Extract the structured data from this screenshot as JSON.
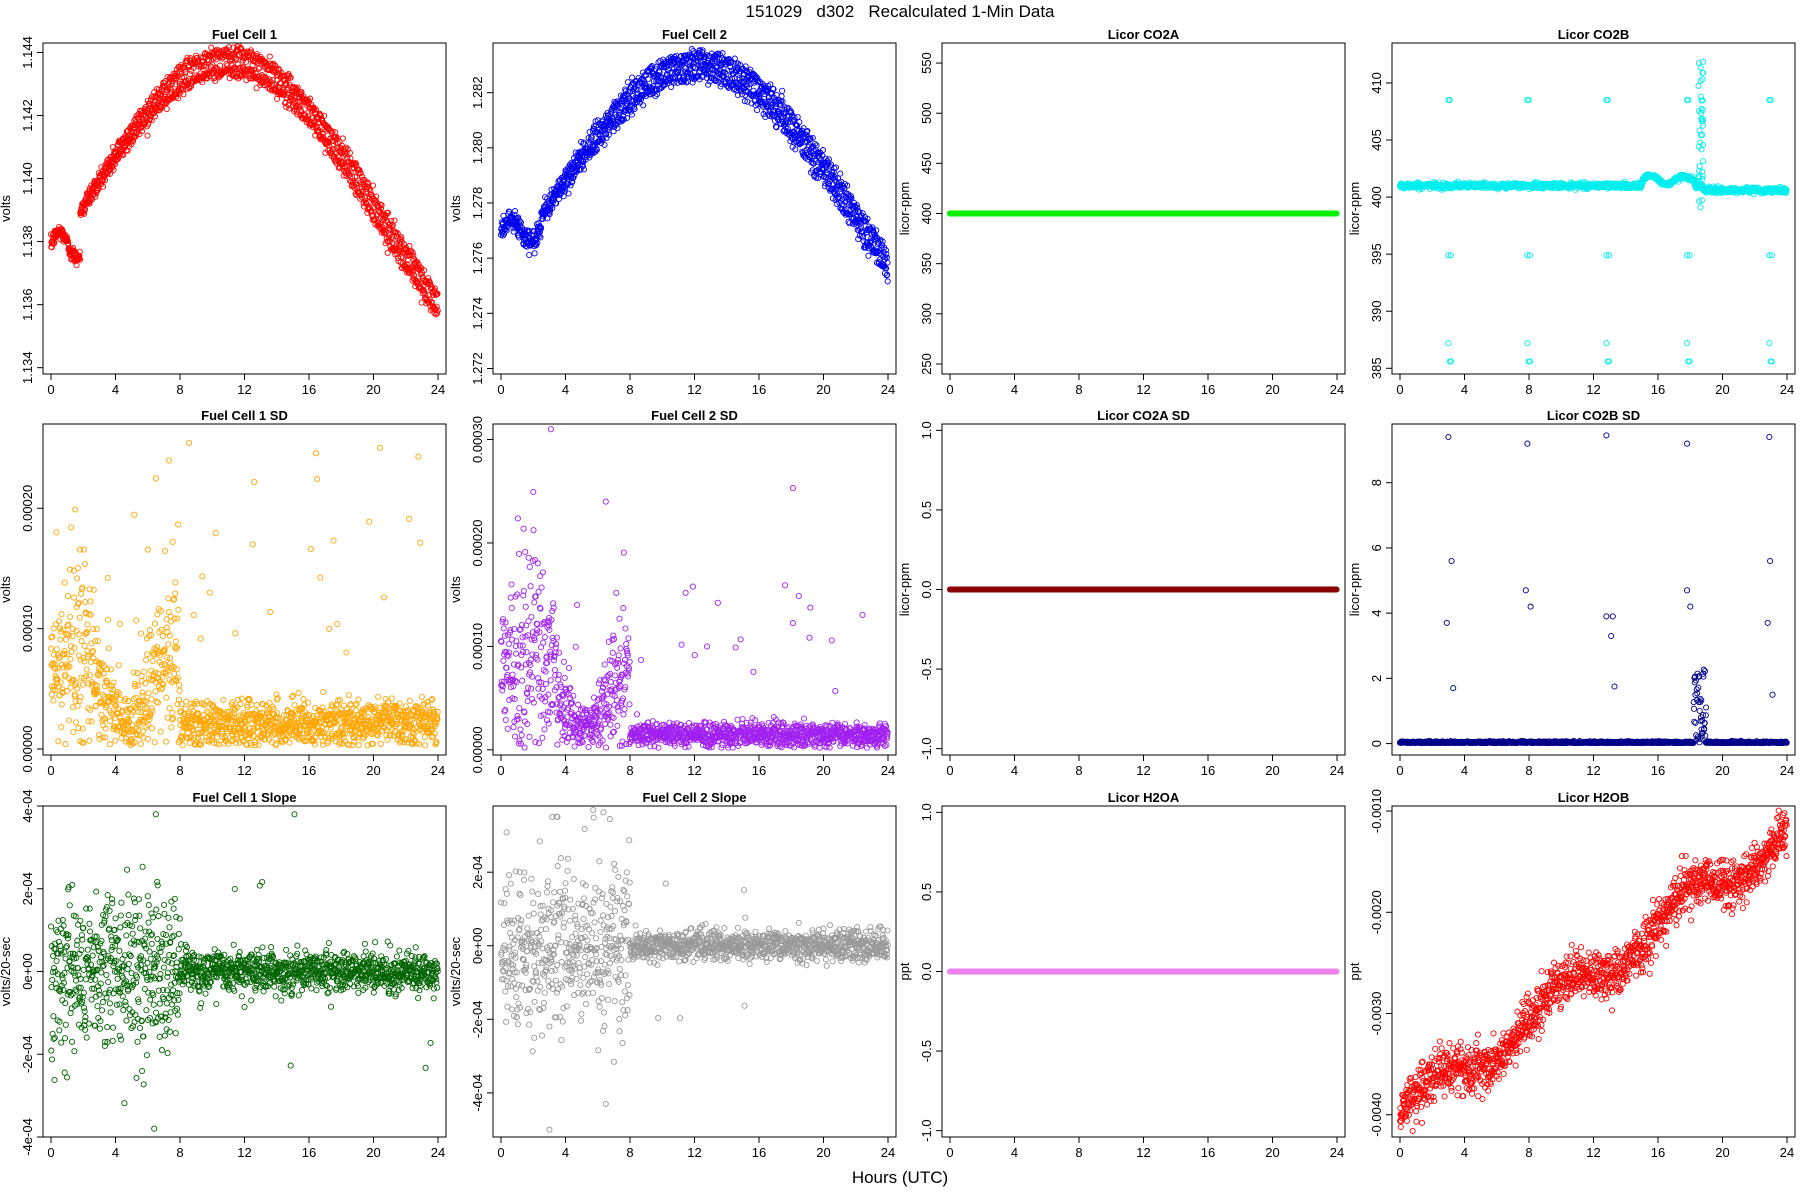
{
  "figure": {
    "title": "151029   d302   Recalculated 1-Min Data",
    "xlabel": "Hours (UTC)"
  },
  "chart_data": [
    {
      "type": "scatter",
      "title": "Fuel Cell 1",
      "xlabel": "",
      "ylabel": "volts",
      "xlim": [
        0,
        24
      ],
      "ylim": [
        1.1338,
        1.1443
      ],
      "xticks": [
        0,
        4,
        8,
        12,
        16,
        20,
        24
      ],
      "yticks": [
        1.134,
        1.136,
        1.138,
        1.14,
        1.142,
        1.144
      ],
      "ytick_labels": [
        "1.134",
        "1.136",
        "1.138",
        "1.140",
        "1.142",
        "1.144"
      ],
      "color": "#ff0000",
      "pattern": "cell1",
      "x_range": [
        0,
        24
      ]
    },
    {
      "type": "scatter",
      "title": "Fuel Cell 2",
      "xlabel": "",
      "ylabel": "volts",
      "xlim": [
        0,
        24
      ],
      "ylim": [
        1.2718,
        1.2838
      ],
      "xticks": [
        0,
        4,
        8,
        12,
        16,
        20,
        24
      ],
      "yticks": [
        1.272,
        1.274,
        1.276,
        1.278,
        1.28,
        1.282
      ],
      "ytick_labels": [
        "1.272",
        "1.274",
        "1.276",
        "1.278",
        "1.280",
        "1.282"
      ],
      "color": "#0000ee",
      "pattern": "cell2",
      "x_range": [
        0,
        24
      ]
    },
    {
      "type": "scatter",
      "title": "Licor CO2A",
      "xlabel": "",
      "ylabel": "licor-ppm",
      "xlim": [
        0,
        24
      ],
      "ylim": [
        240,
        570
      ],
      "xticks": [
        0,
        4,
        8,
        12,
        16,
        20,
        24
      ],
      "yticks": [
        250,
        300,
        350,
        400,
        450,
        500,
        550
      ],
      "ytick_labels": [
        "250",
        "300",
        "350",
        "400",
        "450",
        "500",
        "550"
      ],
      "color": "#00ee00",
      "pattern": "flat",
      "flat_value": 400,
      "x_range": [
        0,
        24
      ]
    },
    {
      "type": "scatter",
      "title": "Licor CO2B",
      "xlabel": "",
      "ylabel": "licor-ppm",
      "xlim": [
        0,
        24
      ],
      "ylim": [
        384.5,
        413.5
      ],
      "xticks": [
        0,
        4,
        8,
        12,
        16,
        20,
        24
      ],
      "yticks": [
        385,
        390,
        395,
        400,
        405,
        410
      ],
      "ytick_labels": [
        "385",
        "390",
        "395",
        "400",
        "405",
        "410"
      ],
      "color": "#00eeee",
      "pattern": "co2b",
      "x_range": [
        0,
        24
      ]
    },
    {
      "type": "scatter",
      "title": "Fuel Cell 1 SD",
      "xlabel": "",
      "ylabel": "volts",
      "xlim": [
        0,
        24
      ],
      "ylim": [
        -5e-06,
        0.00027
      ],
      "xticks": [
        0,
        4,
        8,
        12,
        16,
        20,
        24
      ],
      "yticks": [
        0,
        0.0001,
        0.0002
      ],
      "ytick_labels": [
        "0.00000",
        "0.00010",
        "0.00020"
      ],
      "color": "#ffa500",
      "pattern": "sd1",
      "x_range": [
        0,
        24
      ]
    },
    {
      "type": "scatter",
      "title": "Fuel Cell 2 SD",
      "xlabel": "",
      "ylabel": "volts",
      "xlim": [
        0,
        24
      ],
      "ylim": [
        -5e-06,
        0.000315
      ],
      "xticks": [
        0,
        4,
        8,
        12,
        16,
        20,
        24
      ],
      "yticks": [
        0,
        0.0001,
        0.0002,
        0.0003
      ],
      "ytick_labels": [
        "0.00000",
        "0.00010",
        "0.00020",
        "0.00030"
      ],
      "color": "#a020f0",
      "pattern": "sd2",
      "x_range": [
        0,
        24
      ]
    },
    {
      "type": "scatter",
      "title": "Licor CO2A SD",
      "xlabel": "",
      "ylabel": "licor-ppm",
      "xlim": [
        0,
        24
      ],
      "ylim": [
        -1.04,
        1.04
      ],
      "xticks": [
        0,
        4,
        8,
        12,
        16,
        20,
        24
      ],
      "yticks": [
        -1,
        -0.5,
        0,
        0.5,
        1
      ],
      "ytick_labels": [
        "-1.0",
        "-0.5",
        "0.0",
        "0.5",
        "1.0"
      ],
      "color": "#8b0000",
      "pattern": "flat",
      "flat_value": 0,
      "x_range": [
        0,
        24
      ]
    },
    {
      "type": "scatter",
      "title": "Licor CO2B SD",
      "xlabel": "",
      "ylabel": "licor-ppm",
      "xlim": [
        0,
        24
      ],
      "ylim": [
        -0.35,
        9.8
      ],
      "xticks": [
        0,
        4,
        8,
        12,
        16,
        20,
        24
      ],
      "yticks": [
        0,
        2,
        4,
        6,
        8
      ],
      "ytick_labels": [
        "0",
        "2",
        "4",
        "6",
        "8"
      ],
      "color": "#00008b",
      "pattern": "co2bsd",
      "x_range": [
        0,
        24
      ]
    },
    {
      "type": "scatter",
      "title": "Fuel Cell 1 Slope",
      "xlabel": "",
      "ylabel": "volts/20-sec",
      "xlim": [
        0,
        24
      ],
      "ylim": [
        -0.0004,
        0.0004
      ],
      "xticks": [
        0,
        4,
        8,
        12,
        16,
        20,
        24
      ],
      "yticks": [
        -0.0004,
        -0.0002,
        0,
        0.0002,
        0.0004
      ],
      "ytick_labels": [
        "-4e-04",
        "-2e-04",
        "0e+00",
        "2e-04",
        "4e-04"
      ],
      "color": "#006400",
      "pattern": "slope1",
      "x_range": [
        0,
        24
      ]
    },
    {
      "type": "scatter",
      "title": "Fuel Cell 2 Slope",
      "xlabel": "",
      "ylabel": "volts/20-sec",
      "xlim": [
        0,
        24
      ],
      "ylim": [
        -0.00052,
        0.00038
      ],
      "xticks": [
        0,
        4,
        8,
        12,
        16,
        20,
        24
      ],
      "yticks": [
        -0.0004,
        -0.0002,
        0,
        0.0002
      ],
      "ytick_labels": [
        "-4e-04",
        "-2e-04",
        "0e+00",
        "2e-04"
      ],
      "color": "#999999",
      "pattern": "slope2",
      "x_range": [
        0,
        24
      ]
    },
    {
      "type": "scatter",
      "title": "Licor H2OA",
      "xlabel": "",
      "ylabel": "ppt",
      "xlim": [
        0,
        24
      ],
      "ylim": [
        -1.04,
        1.04
      ],
      "xticks": [
        0,
        4,
        8,
        12,
        16,
        20,
        24
      ],
      "yticks": [
        -1,
        -0.5,
        0,
        0.5,
        1
      ],
      "ytick_labels": [
        "-1.0",
        "-0.5",
        "0.0",
        "0.5",
        "1.0"
      ],
      "color": "#ee82ee",
      "pattern": "flat",
      "flat_value": 0,
      "x_range": [
        0,
        24
      ]
    },
    {
      "type": "scatter",
      "title": "Licor H2OB",
      "xlabel": "",
      "ylabel": "ppt",
      "xlim": [
        0,
        24
      ],
      "ylim": [
        -0.00422,
        -0.00095
      ],
      "xticks": [
        0,
        4,
        8,
        12,
        16,
        20,
        24
      ],
      "yticks": [
        -0.004,
        -0.003,
        -0.002,
        -0.001
      ],
      "ytick_labels": [
        "-0.0040",
        "-0.0030",
        "-0.0020",
        "-0.0010"
      ],
      "color": "#ff0000",
      "pattern": "h2ob",
      "x_range": [
        0,
        24
      ]
    }
  ]
}
